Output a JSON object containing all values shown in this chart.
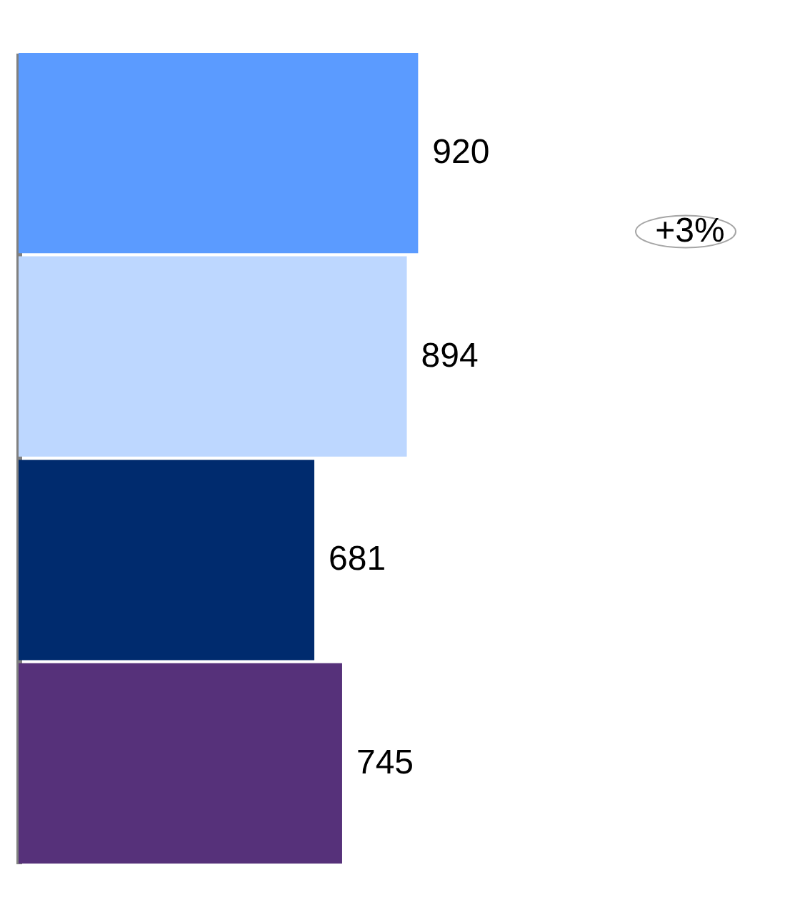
{
  "chart_data": {
    "type": "bar",
    "orientation": "horizontal",
    "categories": [
      null,
      null,
      null,
      null
    ],
    "values": [
      920,
      894,
      681,
      745
    ],
    "colors": [
      "#5b9bff",
      "#bdd7ff",
      "#002b6e",
      "#56317a"
    ],
    "data_labels": true,
    "annotations": [
      "+3%"
    ]
  }
}
